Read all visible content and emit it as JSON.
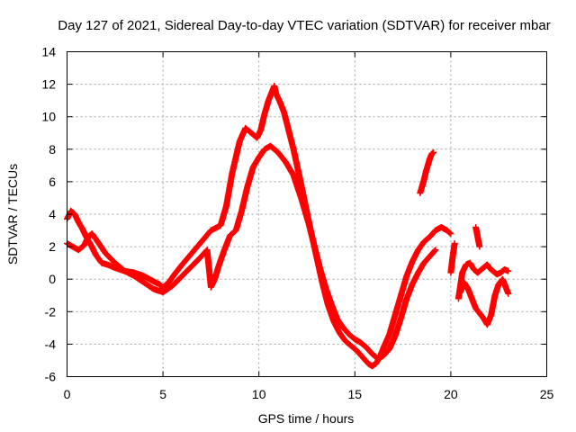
{
  "chart_data": {
    "type": "scatter",
    "title": "Day 127 of 2021, Sidereal Day-to-day VTEC variation (SDTVAR) for receiver mbar",
    "xlabel": "GPS time / hours",
    "ylabel": "SDTVAR / TECUs",
    "xlim": [
      0,
      25
    ],
    "ylim": [
      -6,
      14
    ],
    "xticks": [
      0,
      5,
      10,
      15,
      20,
      25
    ],
    "yticks": [
      -6,
      -4,
      -2,
      0,
      2,
      4,
      6,
      8,
      10,
      12,
      14
    ],
    "grid": true,
    "marker": "+",
    "color": "#ff0000",
    "series": [
      {
        "name": "track 1",
        "x": [
          0.0,
          0.2,
          0.4,
          0.6,
          0.8,
          1.0,
          1.2,
          1.5,
          1.8,
          2.1,
          2.5,
          3.0,
          3.5,
          4.0,
          4.3,
          4.6,
          4.8,
          5.0,
          5.3,
          5.6,
          6.0,
          6.5,
          7.0,
          7.5,
          8.0,
          8.3,
          8.6,
          9.0,
          9.3,
          9.6,
          9.9,
          10.1,
          10.3,
          10.5,
          10.7,
          10.8,
          10.9,
          11.1,
          11.3,
          11.5,
          11.8,
          12.1,
          12.4,
          12.7,
          13.0,
          13.3,
          13.6,
          13.9,
          14.2,
          14.5,
          14.8,
          15.1,
          15.4,
          15.7,
          15.9,
          16.1,
          16.3,
          16.5,
          16.8,
          17.1,
          17.4,
          17.7,
          18.0,
          18.3,
          18.6,
          18.9,
          19.2,
          19.5,
          19.8,
          20.0
        ],
        "y": [
          3.7,
          4.2,
          4.0,
          3.5,
          3.1,
          2.6,
          2.2,
          1.5,
          1.0,
          0.9,
          0.7,
          0.5,
          0.4,
          0.2,
          0.0,
          -0.2,
          -0.3,
          -0.5,
          -0.2,
          0.3,
          0.9,
          1.6,
          2.3,
          3.0,
          3.3,
          4.5,
          6.5,
          8.5,
          9.3,
          9.0,
          8.7,
          9.2,
          10.2,
          11.0,
          11.6,
          11.9,
          11.4,
          10.9,
          10.3,
          9.4,
          8.0,
          6.4,
          4.7,
          3.0,
          1.4,
          -0.2,
          -1.6,
          -2.6,
          -3.3,
          -3.8,
          -4.1,
          -4.4,
          -4.8,
          -5.2,
          -5.35,
          -5.2,
          -4.8,
          -4.2,
          -3.4,
          -2.2,
          -1.0,
          0.2,
          1.1,
          1.8,
          2.3,
          2.6,
          3.0,
          3.2,
          3.0,
          2.8
        ]
      },
      {
        "name": "track 2",
        "x": [
          0.0,
          0.3,
          0.6,
          0.9,
          1.1,
          1.3,
          1.6,
          2.0,
          2.5,
          3.0,
          3.5,
          4.0,
          4.5,
          5.0,
          5.5,
          6.0,
          6.5,
          7.0,
          7.3,
          7.5,
          7.7,
          7.9,
          8.2,
          8.5,
          8.8,
          9.1,
          9.4,
          9.7,
          10.0,
          10.3,
          10.6,
          11.0,
          11.4,
          11.8,
          12.2,
          12.6,
          12.9,
          13.2,
          13.5,
          13.8,
          14.1,
          14.4,
          14.7,
          15.0,
          15.3,
          15.6,
          15.9,
          16.2,
          16.5,
          16.8,
          17.1,
          17.4,
          17.7,
          18.0,
          18.3,
          18.6,
          18.9,
          19.2
        ],
        "y": [
          2.2,
          2.0,
          1.8,
          2.1,
          2.6,
          2.8,
          2.3,
          1.6,
          1.0,
          0.5,
          0.2,
          -0.2,
          -0.6,
          -0.8,
          -0.4,
          0.2,
          0.8,
          1.4,
          1.8,
          -0.5,
          0.0,
          0.8,
          1.8,
          2.7,
          3.0,
          4.2,
          5.7,
          6.9,
          7.5,
          8.0,
          8.2,
          7.8,
          7.2,
          6.4,
          5.0,
          3.4,
          2.0,
          0.6,
          -0.6,
          -1.6,
          -2.5,
          -3.0,
          -3.4,
          -3.7,
          -3.9,
          -4.2,
          -4.6,
          -4.9,
          -4.7,
          -4.3,
          -3.5,
          -2.4,
          -1.2,
          -0.3,
          0.4,
          1.0,
          1.4,
          1.8
        ]
      },
      {
        "name": "track 3",
        "x": [
          18.4,
          18.5,
          18.6,
          18.7,
          18.8,
          18.9,
          19.0,
          19.1
        ],
        "y": [
          5.3,
          5.7,
          6.1,
          6.6,
          7.0,
          7.4,
          7.7,
          7.8
        ]
      },
      {
        "name": "track 4",
        "x": [
          20.4,
          20.5,
          20.6,
          20.8,
          21.0,
          21.2,
          21.4,
          21.6,
          21.8,
          21.9,
          22.0,
          22.2,
          22.4,
          22.6,
          22.8,
          23.0
        ],
        "y": [
          -1.2,
          -0.4,
          0.4,
          0.9,
          1.0,
          0.6,
          0.4,
          0.6,
          0.8,
          0.9,
          0.7,
          0.5,
          0.3,
          0.4,
          0.6,
          0.5
        ]
      },
      {
        "name": "track 5",
        "x": [
          20.5,
          20.7,
          20.9,
          21.1,
          21.3,
          21.5,
          21.7,
          21.9,
          22.1,
          22.3,
          22.5,
          22.7,
          22.9,
          23.0,
          21.3,
          21.4,
          21.5,
          20.0,
          20.1,
          20.2
        ],
        "y": [
          -0.8,
          -0.2,
          -0.6,
          -1.2,
          -1.8,
          -2.1,
          -2.4,
          -2.8,
          -2.2,
          -1.0,
          -0.3,
          0.0,
          -0.6,
          -0.9,
          3.2,
          2.6,
          2.0,
          0.4,
          1.4,
          2.2
        ]
      }
    ]
  }
}
